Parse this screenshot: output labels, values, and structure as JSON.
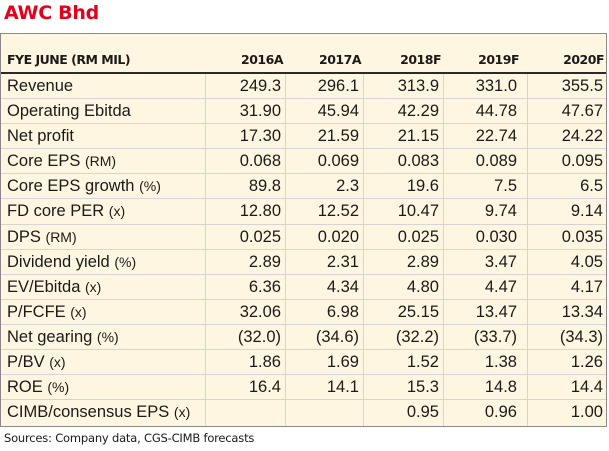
{
  "title": "AWC Bhd",
  "table": {
    "header_label": "FYE JUNE (RM MIL)",
    "columns": [
      "2016A",
      "2017A",
      "2018F",
      "2019F",
      "2020F"
    ],
    "rows": [
      {
        "label": "Revenue",
        "unit": "",
        "values": [
          "249.3",
          "296.1",
          "313.9",
          "331.0",
          "355.5"
        ]
      },
      {
        "label": "Operating Ebitda",
        "unit": "",
        "values": [
          "31.90",
          "45.94",
          "42.29",
          "44.78",
          "47.67"
        ]
      },
      {
        "label": "Net profit",
        "unit": "",
        "values": [
          "17.30",
          "21.59",
          "21.15",
          "22.74",
          "24.22"
        ]
      },
      {
        "label": "Core EPS",
        "unit": "(RM)",
        "values": [
          "0.068",
          "0.069",
          "0.083",
          "0.089",
          "0.095"
        ]
      },
      {
        "label": "Core EPS growth",
        "unit": "(%)",
        "values": [
          "89.8",
          "2.3",
          "19.6",
          "7.5",
          "6.5"
        ]
      },
      {
        "label": "FD core PER",
        "unit": "(x)",
        "values": [
          "12.80",
          "12.52",
          "10.47",
          "9.74",
          "9.14"
        ]
      },
      {
        "label": "DPS",
        "unit": "(RM)",
        "values": [
          "0.025",
          "0.020",
          "0.025",
          "0.030",
          "0.035"
        ]
      },
      {
        "label": "Dividend yield",
        "unit": "(%)",
        "values": [
          "2.89",
          "2.31",
          "2.89",
          "3.47",
          "4.05"
        ]
      },
      {
        "label": "EV/Ebitda",
        "unit": "(x)",
        "values": [
          "6.36",
          "4.34",
          "4.80",
          "4.47",
          "4.17"
        ]
      },
      {
        "label": "P/FCFE",
        "unit": "(x)",
        "values": [
          "32.06",
          "6.98",
          "25.15",
          "13.47",
          "13.34"
        ]
      },
      {
        "label": "Net gearing",
        "unit": "(%)",
        "values": [
          "(32.0)",
          "(34.6)",
          "(32.2)",
          "(33.7)",
          "(34.3)"
        ]
      },
      {
        "label": "P/BV",
        "unit": "(x)",
        "values": [
          "1.86",
          "1.69",
          "1.52",
          "1.38",
          "1.26"
        ]
      },
      {
        "label": "ROE",
        "unit": "(%)",
        "values": [
          "16.4",
          "14.1",
          "15.3",
          "14.8",
          "14.4"
        ]
      },
      {
        "label": "CIMB/consensus EPS",
        "unit": "(x)",
        "values": [
          "",
          "",
          "0.95",
          "0.96",
          "1.00"
        ]
      }
    ]
  },
  "source": "Sources: Company data, CGS-CIMB forecasts",
  "colors": {
    "title": "#e2001a",
    "table_background": "#fef6e0"
  }
}
